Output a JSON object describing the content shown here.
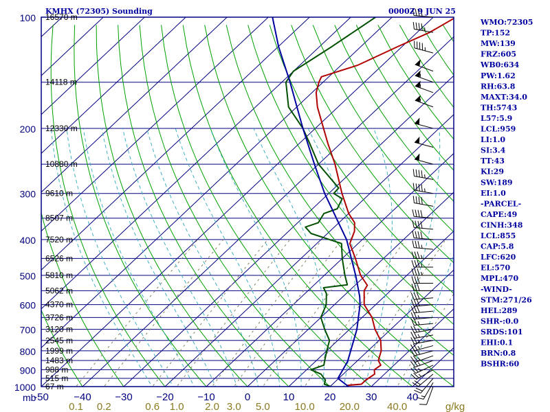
{
  "header": {
    "station": "KMHX (72305) Sounding",
    "time": "0000Z  9 JUN 25"
  },
  "colors": {
    "background": "#ffffff",
    "frame": "#000080",
    "isotherm": "#000080",
    "dry_adiabat": "#00a000",
    "moist_adiabat": "#40b0c0",
    "mixing_ratio": "#808060",
    "temperature": "#b00000",
    "dewpoint": "#005000",
    "parcel": "#0000a0",
    "wind": "#000000",
    "mixing_label": "#8a7a20"
  },
  "chart_data": {
    "type": "skew-t",
    "title": "KMHX (72305) Sounding",
    "subtitle": "0000Z  9 JUN 25",
    "y_axis": {
      "unit_label": "mb",
      "scale": "log",
      "range": [
        1000,
        100
      ],
      "ticks": [
        100,
        200,
        300,
        400,
        500,
        600,
        700,
        800,
        900,
        1000
      ]
    },
    "x_axis": {
      "range": [
        -50,
        50
      ],
      "ticks": [
        -50,
        -40,
        -30,
        -20,
        -10,
        0,
        10,
        20,
        30,
        40
      ],
      "tick_labels": [
        "-50",
        "−40",
        "−30",
        "−20",
        "−10",
        "0",
        "10",
        "20",
        "30",
        "40"
      ]
    },
    "mixing_ratio_axis": {
      "unit_label": "g/kg",
      "values": [
        "0.1",
        "0.2",
        "0.6",
        "1.0",
        "2.0",
        "3.0",
        "5.0",
        "10.0",
        "20.0",
        "40.0"
      ]
    },
    "height_labels": [
      {
        "p": 100,
        "text": "16570 m"
      },
      {
        "p": 150,
        "text": "14118 m"
      },
      {
        "p": 200,
        "text": "12330 m"
      },
      {
        "p": 250,
        "text": "10880 m"
      },
      {
        "p": 300,
        "text": "9610 m"
      },
      {
        "p": 350,
        "text": "8507 m"
      },
      {
        "p": 400,
        "text": "7520 m"
      },
      {
        "p": 450,
        "text": "6526 m"
      },
      {
        "p": 500,
        "text": "5810 m"
      },
      {
        "p": 550,
        "text": "5062 m"
      },
      {
        "p": 600,
        "text": "4370 m"
      },
      {
        "p": 650,
        "text": "3726 m"
      },
      {
        "p": 700,
        "text": "3120 m"
      },
      {
        "p": 750,
        "text": "2545 m"
      },
      {
        "p": 800,
        "text": "1999 m"
      },
      {
        "p": 850,
        "text": "1483 m"
      },
      {
        "p": 900,
        "text": "988 m"
      },
      {
        "p": 950,
        "text": "515 m"
      },
      {
        "p": 1000,
        "text": "67 m"
      }
    ],
    "series": [
      {
        "role": "temperature",
        "points": [
          {
            "p": 1012,
            "t": 25.2
          },
          {
            "p": 1000,
            "t": 24.0
          },
          {
            "p": 992,
            "t": 24.0
          },
          {
            "p": 985,
            "t": 27.0
          },
          {
            "p": 960,
            "t": 27.0
          },
          {
            "p": 925,
            "t": 27.6
          },
          {
            "p": 900,
            "t": 26.4
          },
          {
            "p": 875,
            "t": 26.8
          },
          {
            "p": 850,
            "t": 25.0
          },
          {
            "p": 800,
            "t": 23.2
          },
          {
            "p": 750,
            "t": 20.4
          },
          {
            "p": 700,
            "t": 16.2
          },
          {
            "p": 650,
            "t": 12.4
          },
          {
            "p": 600,
            "t": 7.2
          },
          {
            "p": 550,
            "t": 3.6
          },
          {
            "p": 532,
            "t": 3.0
          },
          {
            "p": 500,
            "t": -1.2
          },
          {
            "p": 450,
            "t": -6.8
          },
          {
            "p": 410,
            "t": -12.0
          },
          {
            "p": 395,
            "t": -13.0
          },
          {
            "p": 380,
            "t": -14.0
          },
          {
            "p": 360,
            "t": -16.2
          },
          {
            "p": 340,
            "t": -20.0
          },
          {
            "p": 300,
            "t": -26.8
          },
          {
            "p": 250,
            "t": -36.0
          },
          {
            "p": 220,
            "t": -43.0
          },
          {
            "p": 200,
            "t": -48.0
          },
          {
            "p": 175,
            "t": -55.0
          },
          {
            "p": 160,
            "t": -59.0
          },
          {
            "p": 150,
            "t": -61.0
          },
          {
            "p": 145,
            "t": -61.8
          },
          {
            "p": 135,
            "t": -56.0
          },
          {
            "p": 120,
            "t": -51.0
          },
          {
            "p": 110,
            "t": -47.0
          },
          {
            "p": 100,
            "t": -44.5
          }
        ]
      },
      {
        "role": "dewpoint",
        "points": [
          {
            "p": 1012,
            "t": 22.0
          },
          {
            "p": 985,
            "t": 18.0
          },
          {
            "p": 960,
            "t": 17.2
          },
          {
            "p": 925,
            "t": 14.6
          },
          {
            "p": 900,
            "t": 11.0
          },
          {
            "p": 875,
            "t": 13.0
          },
          {
            "p": 850,
            "t": 12.0
          },
          {
            "p": 800,
            "t": 10.0
          },
          {
            "p": 750,
            "t": 8.0
          },
          {
            "p": 700,
            "t": 4.0
          },
          {
            "p": 650,
            "t": 0.0
          },
          {
            "p": 600,
            "t": -2.0
          },
          {
            "p": 560,
            "t": -4.8
          },
          {
            "p": 540,
            "t": -7.0
          },
          {
            "p": 530,
            "t": -2.0
          },
          {
            "p": 500,
            "t": -5.0
          },
          {
            "p": 450,
            "t": -10.0
          },
          {
            "p": 410,
            "t": -14.0
          },
          {
            "p": 385,
            "t": -24.0
          },
          {
            "p": 370,
            "t": -27.0
          },
          {
            "p": 360,
            "t": -25.0
          },
          {
            "p": 340,
            "t": -26.0
          },
          {
            "p": 330,
            "t": -24.0
          },
          {
            "p": 310,
            "t": -25.4
          },
          {
            "p": 300,
            "t": -28.8
          },
          {
            "p": 290,
            "t": -29.0
          },
          {
            "p": 250,
            "t": -40.0
          },
          {
            "p": 220,
            "t": -47.4
          },
          {
            "p": 200,
            "t": -53.0
          },
          {
            "p": 175,
            "t": -62.0
          },
          {
            "p": 150,
            "t": -69.0
          },
          {
            "p": 140,
            "t": -70.0
          },
          {
            "p": 120,
            "t": -67.0
          },
          {
            "p": 100,
            "t": -64.0
          }
        ]
      },
      {
        "role": "parcel",
        "points": [
          {
            "p": 1000,
            "t": 24.5
          },
          {
            "p": 950,
            "t": 19.8
          },
          {
            "p": 855,
            "t": 17.8
          },
          {
            "p": 800,
            "t": 15.8
          },
          {
            "p": 700,
            "t": 11.8
          },
          {
            "p": 600,
            "t": 6.2
          },
          {
            "p": 570,
            "t": 4.0
          },
          {
            "p": 500,
            "t": -2.4
          },
          {
            "p": 400,
            "t": -13.8
          },
          {
            "p": 300,
            "t": -31.0
          },
          {
            "p": 250,
            "t": -41.0
          },
          {
            "p": 200,
            "t": -53.0
          },
          {
            "p": 150,
            "t": -68.0
          },
          {
            "p": 120,
            "t": -80.0
          },
          {
            "p": 100,
            "t": -89.0
          }
        ]
      }
    ],
    "wind_barbs": [
      {
        "p": 1000,
        "dir": 200,
        "kt": 10
      },
      {
        "p": 975,
        "dir": 210,
        "kt": 15
      },
      {
        "p": 950,
        "dir": 220,
        "kt": 20
      },
      {
        "p": 925,
        "dir": 230,
        "kt": 20
      },
      {
        "p": 900,
        "dir": 240,
        "kt": 25
      },
      {
        "p": 875,
        "dir": 245,
        "kt": 25
      },
      {
        "p": 850,
        "dir": 250,
        "kt": 25
      },
      {
        "p": 825,
        "dir": 250,
        "kt": 25
      },
      {
        "p": 800,
        "dir": 255,
        "kt": 25
      },
      {
        "p": 775,
        "dir": 255,
        "kt": 25
      },
      {
        "p": 750,
        "dir": 260,
        "kt": 25
      },
      {
        "p": 725,
        "dir": 260,
        "kt": 25
      },
      {
        "p": 700,
        "dir": 260,
        "kt": 25
      },
      {
        "p": 675,
        "dir": 265,
        "kt": 25
      },
      {
        "p": 650,
        "dir": 265,
        "kt": 25
      },
      {
        "p": 625,
        "dir": 265,
        "kt": 30
      },
      {
        "p": 600,
        "dir": 265,
        "kt": 30
      },
      {
        "p": 575,
        "dir": 265,
        "kt": 30
      },
      {
        "p": 550,
        "dir": 270,
        "kt": 30
      },
      {
        "p": 525,
        "dir": 270,
        "kt": 30
      },
      {
        "p": 500,
        "dir": 270,
        "kt": 35
      },
      {
        "p": 475,
        "dir": 270,
        "kt": 35
      },
      {
        "p": 450,
        "dir": 270,
        "kt": 35
      },
      {
        "p": 425,
        "dir": 275,
        "kt": 35
      },
      {
        "p": 400,
        "dir": 275,
        "kt": 40
      },
      {
        "p": 375,
        "dir": 275,
        "kt": 40
      },
      {
        "p": 350,
        "dir": 275,
        "kt": 40
      },
      {
        "p": 325,
        "dir": 280,
        "kt": 40
      },
      {
        "p": 300,
        "dir": 280,
        "kt": 45
      },
      {
        "p": 275,
        "dir": 280,
        "kt": 45
      },
      {
        "p": 250,
        "dir": 285,
        "kt": 50
      },
      {
        "p": 225,
        "dir": 285,
        "kt": 50
      },
      {
        "p": 200,
        "dir": 285,
        "kt": 50
      },
      {
        "p": 175,
        "dir": 290,
        "kt": 55
      },
      {
        "p": 160,
        "dir": 290,
        "kt": 55
      },
      {
        "p": 150,
        "dir": 290,
        "kt": 55
      },
      {
        "p": 140,
        "dir": 290,
        "kt": 50
      },
      {
        "p": 125,
        "dir": 285,
        "kt": 45
      },
      {
        "p": 110,
        "dir": 280,
        "kt": 45
      },
      {
        "p": 100,
        "dir": 275,
        "kt": 40
      }
    ],
    "indices": [
      "WMO:72305",
      "TP:152",
      "MW:139",
      "FRZ:605",
      "WB0:634",
      "PW:1.62",
      "RH:63.8",
      "MAXT:34.0",
      "TH:5743",
      "L57:5.9",
      "LCL:959",
      "LI:1.0",
      "SI:3.4",
      "TT:43",
      "KI:29",
      "SW:189",
      "EI:1.0",
      "-PARCEL-",
      "CAPE:49",
      "CINH:348",
      "LCL:855",
      "CAP:5.8",
      "LFC:620",
      "EL:570",
      "MPL:470",
      "-WIND-",
      "STM:271/26",
      "HEL:289",
      "SHR-:0.0",
      "SRDS:101",
      "EHI:0.1",
      "BRN:0.8",
      "BSHR:60"
    ]
  }
}
